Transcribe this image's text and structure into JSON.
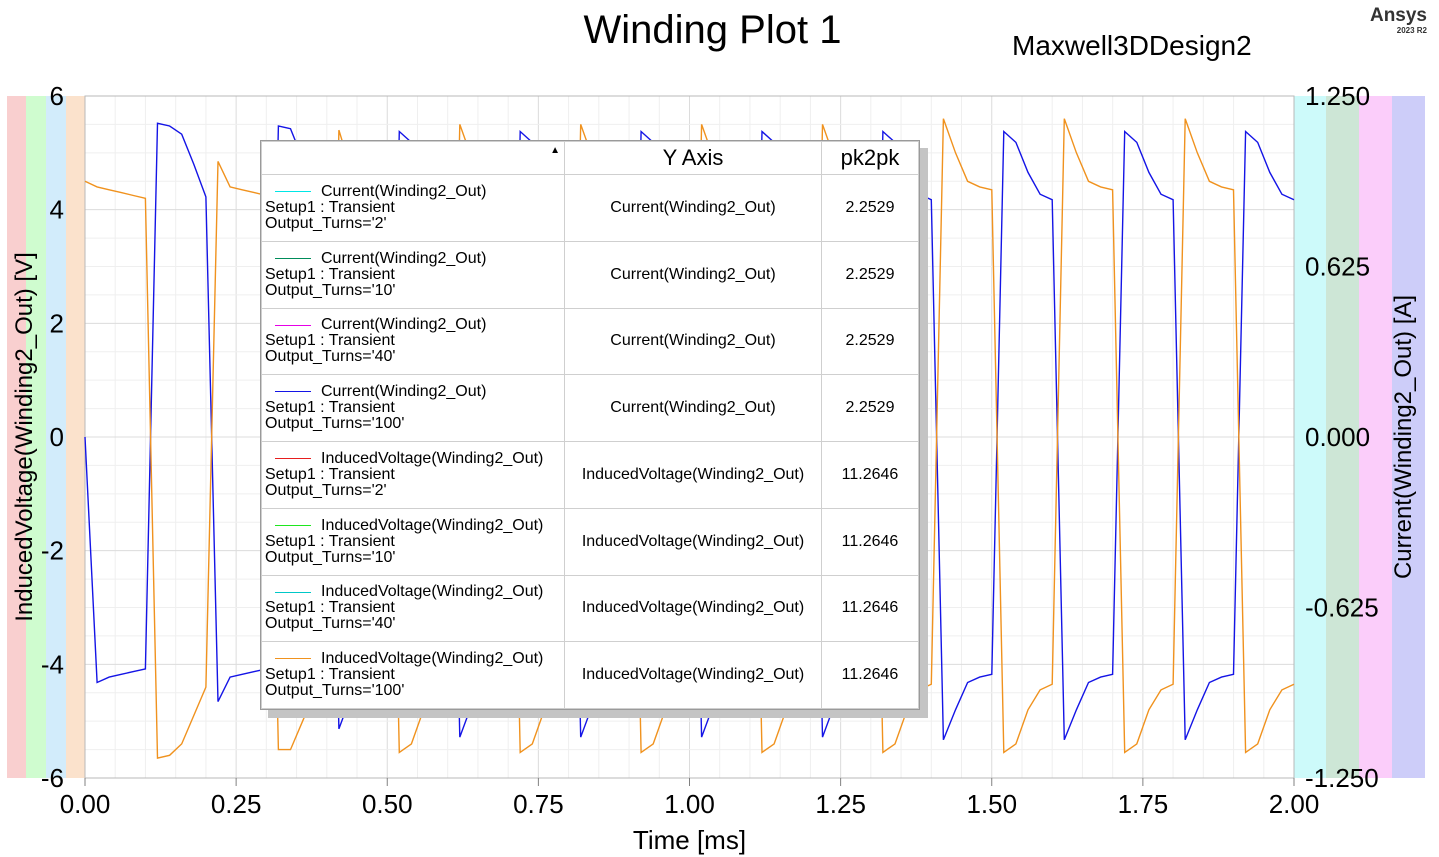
{
  "header": {
    "title": "Winding Plot 1",
    "subtitle": "Maxwell3DDesign2",
    "brand": "Ansys",
    "version": "2023 R2"
  },
  "chart_data": {
    "type": "line",
    "title": "Winding Plot 1",
    "xlabel": "Time [ms]",
    "ylabel_left": "InducedVoltage(Winding2_Out) [V]",
    "ylabel_right": "Current(Winding2_Out) [A]",
    "xlim": [
      0,
      2
    ],
    "ylim_left": [
      -6,
      6
    ],
    "ylim_right": [
      -1.25,
      1.25
    ],
    "x_ticks": [
      "0.00",
      "0.25",
      "0.50",
      "0.75",
      "1.00",
      "1.25",
      "1.50",
      "1.75",
      "2.00"
    ],
    "y_left_ticks": [
      "6",
      "4",
      "2",
      "0",
      "-2",
      "-4",
      "-6"
    ],
    "y_right_ticks": [
      "1.250",
      "0.625",
      "0.000",
      "-0.625",
      "-1.250"
    ],
    "grid": true,
    "axis_band_colors_left": [
      "#f9cfcf",
      "#cffccf",
      "#d2ecfb",
      "#fbe2cc"
    ],
    "axis_band_colors_right": [
      "#cdfafa",
      "#cde6d6",
      "#fbcdfa",
      "#cdcdf9"
    ],
    "series": [
      {
        "name": "Current(Winding2_Out)",
        "axis": "right",
        "color": "#1414e6",
        "x": [
          0.0,
          0.02,
          0.04,
          0.06,
          0.08,
          0.1,
          0.12,
          0.14,
          0.16,
          0.18,
          0.2,
          0.22,
          0.24,
          0.26,
          0.28,
          0.3,
          0.32,
          0.34,
          0.36,
          0.38,
          0.4,
          0.42,
          0.44,
          0.46,
          0.48,
          0.5,
          0.52,
          0.54,
          0.56,
          0.58,
          0.6,
          0.62,
          0.64,
          0.66,
          0.68,
          0.7,
          0.72,
          0.74,
          0.76,
          0.78,
          0.8,
          0.82,
          0.84,
          0.86,
          0.88,
          0.9,
          0.92,
          0.94,
          0.96,
          0.98,
          1.0,
          1.02,
          1.04,
          1.06,
          1.08,
          1.1,
          1.12,
          1.14,
          1.16,
          1.18,
          1.2,
          1.22,
          1.24,
          1.26,
          1.28,
          1.3,
          1.32,
          1.34,
          1.36,
          1.38,
          1.4,
          1.42,
          1.44,
          1.46,
          1.48,
          1.5,
          1.52,
          1.54,
          1.56,
          1.58,
          1.6,
          1.62,
          1.64,
          1.66,
          1.68,
          1.7,
          1.72,
          1.74,
          1.76,
          1.78,
          1.8,
          1.82,
          1.84,
          1.86,
          1.88,
          1.9,
          1.92,
          1.94,
          1.96,
          1.98,
          2.0
        ],
        "values": [
          0.0,
          -0.9,
          -0.88,
          -0.87,
          -0.86,
          -0.85,
          1.15,
          1.14,
          1.11,
          1.0,
          0.88,
          -0.97,
          -0.88,
          -0.87,
          -0.86,
          -0.85,
          1.14,
          1.13,
          1.02,
          0.92,
          0.88,
          -1.07,
          -0.95,
          -0.88,
          -0.87,
          -0.86,
          1.12,
          1.08,
          0.96,
          0.89,
          0.87,
          -1.1,
          -0.98,
          -0.91,
          -0.88,
          -0.86,
          1.12,
          1.08,
          0.96,
          0.89,
          0.87,
          -1.1,
          -0.98,
          -0.91,
          -0.88,
          -0.86,
          1.12,
          1.08,
          0.96,
          0.89,
          0.87,
          -1.1,
          -0.98,
          -0.91,
          -0.88,
          -0.86,
          1.12,
          1.08,
          0.96,
          0.89,
          0.87,
          -1.1,
          -0.98,
          -0.91,
          -0.88,
          -0.86,
          1.12,
          1.08,
          0.96,
          0.89,
          0.87,
          -1.11,
          -1.0,
          -0.9,
          -0.88,
          -0.87,
          1.12,
          1.08,
          0.97,
          0.89,
          0.87,
          -1.11,
          -1.0,
          -0.9,
          -0.88,
          -0.87,
          1.12,
          1.08,
          0.97,
          0.89,
          0.87,
          -1.11,
          -1.0,
          -0.9,
          -0.88,
          -0.87,
          1.12,
          1.08,
          0.97,
          0.89,
          0.87
        ]
      },
      {
        "name": "InducedVoltage(Winding2_Out)",
        "axis": "left",
        "color": "#f0921e",
        "x": [
          0.0,
          0.02,
          0.04,
          0.06,
          0.08,
          0.1,
          0.12,
          0.14,
          0.16,
          0.18,
          0.2,
          0.22,
          0.24,
          0.26,
          0.28,
          0.3,
          0.32,
          0.34,
          0.36,
          0.38,
          0.4,
          0.42,
          0.44,
          0.46,
          0.48,
          0.5,
          0.52,
          0.54,
          0.56,
          0.58,
          0.6,
          0.62,
          0.64,
          0.66,
          0.68,
          0.7,
          0.72,
          0.74,
          0.76,
          0.78,
          0.8,
          0.82,
          0.84,
          0.86,
          0.88,
          0.9,
          0.92,
          0.94,
          0.96,
          0.98,
          1.0,
          1.02,
          1.04,
          1.06,
          1.08,
          1.1,
          1.12,
          1.14,
          1.16,
          1.18,
          1.2,
          1.22,
          1.24,
          1.26,
          1.28,
          1.3,
          1.32,
          1.34,
          1.36,
          1.38,
          1.4,
          1.42,
          1.44,
          1.46,
          1.48,
          1.5,
          1.52,
          1.54,
          1.56,
          1.58,
          1.6,
          1.62,
          1.64,
          1.66,
          1.68,
          1.7,
          1.72,
          1.74,
          1.76,
          1.78,
          1.8,
          1.82,
          1.84,
          1.86,
          1.88,
          1.9,
          1.92,
          1.94,
          1.96,
          1.98,
          2.0
        ],
        "values": [
          4.5,
          4.4,
          4.35,
          4.3,
          4.25,
          4.2,
          -5.65,
          -5.6,
          -5.4,
          -4.9,
          -4.4,
          4.85,
          4.4,
          4.35,
          4.3,
          4.25,
          -5.5,
          -5.5,
          -5.0,
          -4.5,
          -4.4,
          5.4,
          4.7,
          4.4,
          4.35,
          4.3,
          -5.55,
          -5.4,
          -4.8,
          -4.45,
          -4.35,
          5.5,
          4.9,
          4.55,
          4.4,
          4.3,
          -5.55,
          -5.4,
          -4.8,
          -4.45,
          -4.35,
          5.5,
          4.9,
          4.55,
          4.4,
          4.3,
          -5.55,
          -5.4,
          -4.8,
          -4.45,
          -4.35,
          5.5,
          4.9,
          4.55,
          4.4,
          4.3,
          -5.55,
          -5.4,
          -4.8,
          -4.45,
          -4.35,
          5.5,
          4.9,
          4.55,
          4.4,
          4.3,
          -5.55,
          -5.4,
          -4.8,
          -4.45,
          -4.35,
          5.6,
          5.0,
          4.5,
          4.4,
          4.35,
          -5.55,
          -5.4,
          -4.8,
          -4.45,
          -4.35,
          5.6,
          5.0,
          4.5,
          4.4,
          4.35,
          -5.55,
          -5.4,
          -4.8,
          -4.45,
          -4.35,
          5.6,
          5.0,
          4.5,
          4.4,
          4.35,
          -5.55,
          -5.4,
          -4.8,
          -4.45,
          -4.35
        ]
      }
    ]
  },
  "legend": {
    "header_trace": "",
    "header_yaxis": "Y Axis",
    "header_value": "pk2pk",
    "sort_icon": "sort-ascending-icon",
    "rows": [
      {
        "color": "#00e6e6",
        "l1": "Current(Winding2_Out)",
        "l2": "Setup1 : Transient",
        "l3": "Output_Turns='2'",
        "yaxis": "Current(Winding2_Out)",
        "value": "2.2529"
      },
      {
        "color": "#008c5a",
        "l1": "Current(Winding2_Out)",
        "l2": "Setup1 : Transient",
        "l3": "Output_Turns='10'",
        "yaxis": "Current(Winding2_Out)",
        "value": "2.2529"
      },
      {
        "color": "#e600e6",
        "l1": "Current(Winding2_Out)",
        "l2": "Setup1 : Transient",
        "l3": "Output_Turns='40'",
        "yaxis": "Current(Winding2_Out)",
        "value": "2.2529"
      },
      {
        "color": "#1414e6",
        "l1": "Current(Winding2_Out)",
        "l2": "Setup1 : Transient",
        "l3": "Output_Turns='100'",
        "yaxis": "Current(Winding2_Out)",
        "value": "2.2529"
      },
      {
        "color": "#e61e1e",
        "l1": "InducedVoltage(Winding2_Out)",
        "l2": "Setup1 : Transient",
        "l3": "Output_Turns='2'",
        "yaxis": "InducedVoltage(Winding2_Out)",
        "value": "11.2646"
      },
      {
        "color": "#1ee61e",
        "l1": "InducedVoltage(Winding2_Out)",
        "l2": "Setup1 : Transient",
        "l3": "Output_Turns='10'",
        "yaxis": "InducedVoltage(Winding2_Out)",
        "value": "11.2646"
      },
      {
        "color": "#00c8c8",
        "l1": "InducedVoltage(Winding2_Out)",
        "l2": "Setup1 : Transient",
        "l3": "Output_Turns='40'",
        "yaxis": "InducedVoltage(Winding2_Out)",
        "value": "11.2646"
      },
      {
        "color": "#f0921e",
        "l1": "InducedVoltage(Winding2_Out)",
        "l2": "Setup1 : Transient",
        "l3": "Output_Turns='100'",
        "yaxis": "InducedVoltage(Winding2_Out)",
        "value": "11.2646"
      }
    ]
  }
}
